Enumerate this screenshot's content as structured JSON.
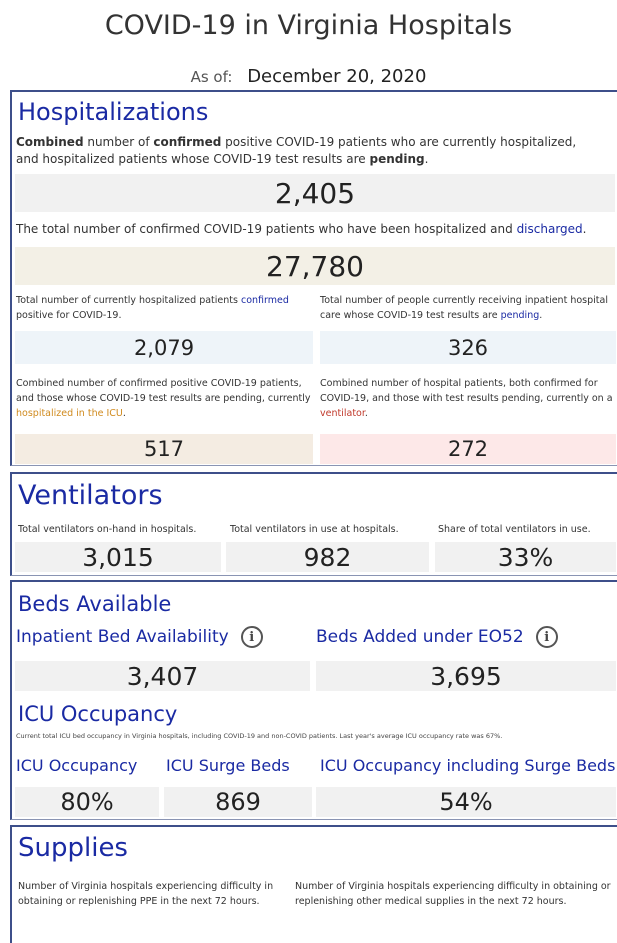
{
  "header": {
    "title": "COVID-19 in Virginia Hospitals",
    "as_of_label": "As of:",
    "as_of_date": "December 20, 2020"
  },
  "hospitalizations": {
    "title": "Hospitalizations",
    "combined_desc": {
      "p1": "Combined",
      "p2": " number of ",
      "p3": "confirmed",
      "p4": " positive COVID-19 patients who are currently hospitalized, and hospitalized patients whose COVID-19 test results are ",
      "p5": "pending",
      "p6": "."
    },
    "combined_value": "2,405",
    "discharged_desc": {
      "p1": "The total number of confirmed COVID-19 patients who have been hospitalized and ",
      "p2": "discharged",
      "p3": "."
    },
    "discharged_value": "27,780",
    "confirmed_desc": {
      "p1": "Total number of currently hospitalized patients ",
      "p2": "confirmed",
      "p3": " positive for COVID-19."
    },
    "confirmed_value": "2,079",
    "pending_desc": {
      "p1": "Total number of people currently receiving inpatient hospital care whose COVID-19 test results are ",
      "p2": "pending",
      "p3": "."
    },
    "pending_value": "326",
    "icu_desc": {
      "p1": "Combined number of confirmed positive COVID-19 patients, and those whose COVID-19 test results are pending, currently ",
      "p2": "hospitalized in the ICU",
      "p3": "."
    },
    "icu_value": "517",
    "vent_desc": {
      "p1": "Combined number of hospital patients, both confirmed for COVID-19, and those with test results pending, currently on a ",
      "p2": "ventilator",
      "p3": "."
    },
    "vent_value": "272"
  },
  "ventilators": {
    "title": "Ventilators",
    "onhand_label": "Total ventilators on-hand in hospitals.",
    "onhand_value": "3,015",
    "inuse_label": "Total ventilators in use at hospitals.",
    "inuse_value": "982",
    "share_label": "Share of total ventilators in use.",
    "share_value": "33%"
  },
  "beds": {
    "title": "Beds Available",
    "inpatient_label": "Inpatient Bed Availability",
    "inpatient_value": "3,407",
    "added_label": "Beds Added under EO52",
    "added_value": "3,695",
    "info_glyph": "i",
    "icu_title": "ICU Occupancy",
    "icu_note": "Current total ICU bed occupancy in Virginia hospitals, including COVID-19 and non-COVID patients. Last year's average ICU occupancy rate was 67%.",
    "icu_occ_label": "ICU Occupancy",
    "icu_occ_value": "80%",
    "surge_label": "ICU Surge Beds",
    "surge_value": "869",
    "incl_surge_label": "ICU Occupancy including Surge Beds",
    "incl_surge_value": "54%"
  },
  "supplies": {
    "title": "Supplies",
    "ppe_desc": "Number of Virginia hospitals experiencing difficulty in obtaining or replenishing PPE in the next 72 hours.",
    "other_desc": "Number of Virginia hospitals experiencing difficulty in obtaining or replenishing other medical supplies in the next 72 hours."
  }
}
